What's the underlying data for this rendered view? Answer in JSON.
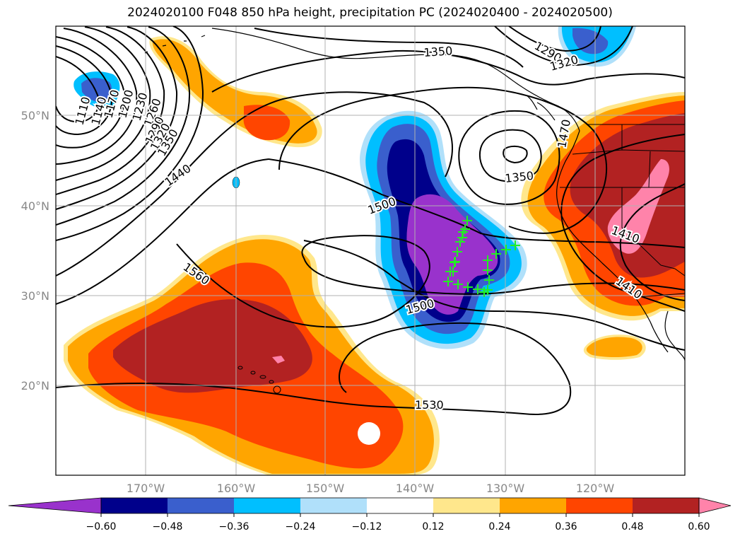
{
  "title": "2024020100 F048 850 hPa height, precipitation PC (2024020400 - 2024020500)",
  "map": {
    "lon_labels": [
      "170°W",
      "160°W",
      "150°W",
      "140°W",
      "130°W",
      "120°W"
    ],
    "lat_labels": [
      "50°N",
      "40°N",
      "30°N",
      "20°N"
    ],
    "contour_labels": [
      "1350",
      "1290",
      "1320",
      "1110",
      "1140",
      "1170",
      "1200",
      "1230",
      "1260",
      "1290",
      "1320",
      "1350",
      "1440",
      "1500",
      "1350",
      "1560",
      "1500",
      "1530",
      "1410",
      "1410",
      "1470"
    ],
    "marker_color": "#22ee22",
    "marker_count": 22
  },
  "colorbar": {
    "colors": [
      "#9932cc",
      "#00008b",
      "#3a5fcd",
      "#00bfff",
      "#b0e0fa",
      "#ffffff",
      "#ffe78c",
      "#ffa500",
      "#ff4500",
      "#b22222",
      "#ff83aa"
    ],
    "ticks": [
      "−0.60",
      "−0.48",
      "−0.36",
      "−0.24",
      "−0.12",
      "0.12",
      "0.24",
      "0.36",
      "0.48",
      "0.60"
    ]
  }
}
